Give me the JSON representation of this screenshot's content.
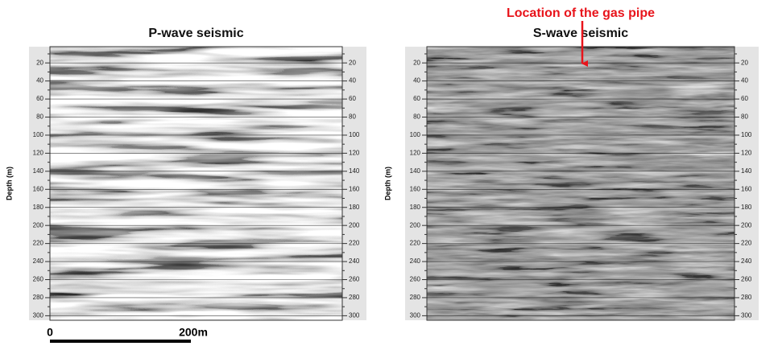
{
  "chart_data": [
    {
      "type": "seismic-section",
      "title": "P-wave seismic",
      "y_label": "Depth (m)",
      "ylim": [
        2,
        305
      ],
      "y_inverted": true,
      "yticks": [
        20,
        40,
        60,
        80,
        100,
        120,
        140,
        160,
        180,
        200,
        220,
        240,
        260,
        280,
        300
      ],
      "minor_yticks": [
        10,
        30,
        50,
        70,
        90,
        110,
        130,
        150,
        170,
        190,
        210,
        230,
        250,
        270,
        290
      ],
      "grid": true
    },
    {
      "type": "seismic-section",
      "title": "S-wave seismic",
      "y_label": "Depth (m)",
      "ylim": [
        2,
        305
      ],
      "y_inverted": true,
      "yticks": [
        20,
        40,
        60,
        80,
        100,
        120,
        140,
        160,
        180,
        200,
        220,
        240,
        260,
        280,
        300
      ],
      "minor_yticks": [
        10,
        30,
        50,
        70,
        90,
        110,
        130,
        150,
        170,
        190,
        210,
        230,
        250,
        270,
        290
      ],
      "grid": true,
      "annotation": {
        "text": "Location of the gas pipe",
        "color": "#e8141b"
      }
    }
  ],
  "scale_bar": {
    "start": "0",
    "end": "200m"
  }
}
